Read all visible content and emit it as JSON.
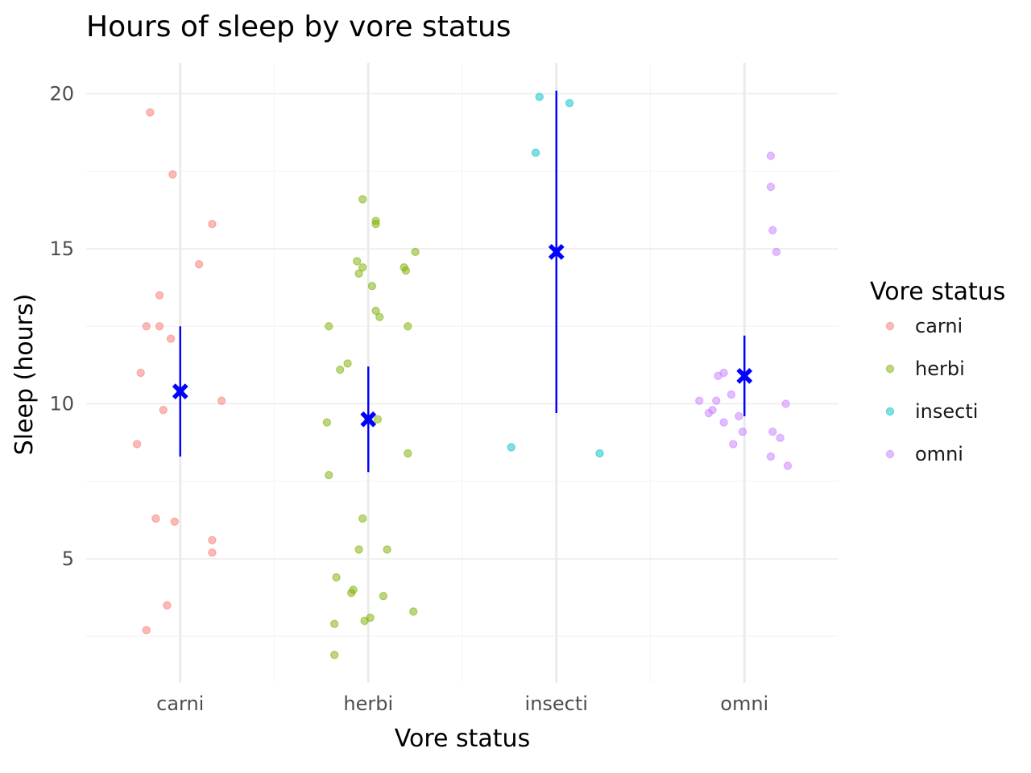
{
  "chart_data": {
    "type": "scatter",
    "title": "Hours of sleep by vore status",
    "xlabel": "Vore status",
    "ylabel": "Sleep (hours)",
    "categories": [
      "carni",
      "herbi",
      "insecti",
      "omni"
    ],
    "ylim": [
      1.0,
      21.0
    ],
    "yticks": [
      5,
      10,
      15,
      20
    ],
    "grid": true,
    "legend": {
      "title": "Vore status",
      "placement": "right",
      "entries": [
        "carni",
        "herbi",
        "insecti",
        "omni"
      ]
    },
    "colors": {
      "carni": "#f8766d",
      "herbi": "#7cae00",
      "insecti": "#00bfc4",
      "omni": "#c77cff",
      "summary": "#0000ff",
      "grid": "#ebebeb"
    },
    "series": [
      {
        "name": "carni",
        "points": [
          {
            "x": -0.16,
            "y": 19.4
          },
          {
            "x": -0.04,
            "y": 17.4
          },
          {
            "x": 0.17,
            "y": 15.8
          },
          {
            "x": 0.1,
            "y": 14.5
          },
          {
            "x": -0.11,
            "y": 13.5
          },
          {
            "x": -0.18,
            "y": 12.5
          },
          {
            "x": -0.11,
            "y": 12.5
          },
          {
            "x": -0.05,
            "y": 12.1
          },
          {
            "x": -0.21,
            "y": 11.0
          },
          {
            "x": 0.0,
            "y": 10.4
          },
          {
            "x": 0.22,
            "y": 10.1
          },
          {
            "x": -0.09,
            "y": 9.8
          },
          {
            "x": -0.23,
            "y": 8.7
          },
          {
            "x": -0.13,
            "y": 6.3
          },
          {
            "x": -0.03,
            "y": 6.2
          },
          {
            "x": 0.17,
            "y": 5.6
          },
          {
            "x": 0.17,
            "y": 5.2
          },
          {
            "x": -0.07,
            "y": 3.5
          },
          {
            "x": -0.18,
            "y": 2.7
          }
        ]
      },
      {
        "name": "herbi",
        "points": [
          {
            "x": -0.03,
            "y": 16.6
          },
          {
            "x": 0.04,
            "y": 15.9
          },
          {
            "x": 0.04,
            "y": 15.8
          },
          {
            "x": 0.25,
            "y": 14.9
          },
          {
            "x": -0.06,
            "y": 14.6
          },
          {
            "x": -0.03,
            "y": 14.4
          },
          {
            "x": 0.19,
            "y": 14.4
          },
          {
            "x": 0.2,
            "y": 14.3
          },
          {
            "x": -0.05,
            "y": 14.2
          },
          {
            "x": 0.02,
            "y": 13.8
          },
          {
            "x": 0.04,
            "y": 13.0
          },
          {
            "x": 0.06,
            "y": 12.8
          },
          {
            "x": -0.21,
            "y": 12.5
          },
          {
            "x": 0.21,
            "y": 12.5
          },
          {
            "x": -0.11,
            "y": 11.3
          },
          {
            "x": -0.15,
            "y": 11.1
          },
          {
            "x": 0.0,
            "y": 9.5
          },
          {
            "x": 0.05,
            "y": 9.5
          },
          {
            "x": -0.22,
            "y": 9.4
          },
          {
            "x": 0.21,
            "y": 8.4
          },
          {
            "x": -0.21,
            "y": 7.7
          },
          {
            "x": -0.03,
            "y": 6.3
          },
          {
            "x": -0.05,
            "y": 5.3
          },
          {
            "x": 0.1,
            "y": 5.3
          },
          {
            "x": -0.17,
            "y": 4.4
          },
          {
            "x": -0.08,
            "y": 4.0
          },
          {
            "x": -0.09,
            "y": 3.9
          },
          {
            "x": 0.08,
            "y": 3.8
          },
          {
            "x": 0.24,
            "y": 3.3
          },
          {
            "x": 0.01,
            "y": 3.1
          },
          {
            "x": -0.02,
            "y": 3.0
          },
          {
            "x": -0.18,
            "y": 2.9
          },
          {
            "x": -0.18,
            "y": 1.9
          }
        ]
      },
      {
        "name": "insecti",
        "points": [
          {
            "x": -0.09,
            "y": 19.9
          },
          {
            "x": 0.07,
            "y": 19.7
          },
          {
            "x": -0.11,
            "y": 18.1
          },
          {
            "x": -0.24,
            "y": 8.6
          },
          {
            "x": 0.23,
            "y": 8.4
          }
        ]
      },
      {
        "name": "omni",
        "points": [
          {
            "x": 0.14,
            "y": 18.0
          },
          {
            "x": 0.14,
            "y": 17.0
          },
          {
            "x": 0.15,
            "y": 15.6
          },
          {
            "x": 0.17,
            "y": 14.9
          },
          {
            "x": -0.11,
            "y": 11.0
          },
          {
            "x": -0.14,
            "y": 10.9
          },
          {
            "x": -0.07,
            "y": 10.3
          },
          {
            "x": -0.24,
            "y": 10.1
          },
          {
            "x": -0.15,
            "y": 10.1
          },
          {
            "x": 0.22,
            "y": 10.0
          },
          {
            "x": -0.17,
            "y": 9.8
          },
          {
            "x": -0.19,
            "y": 9.7
          },
          {
            "x": -0.03,
            "y": 9.6
          },
          {
            "x": -0.11,
            "y": 9.4
          },
          {
            "x": 0.15,
            "y": 9.1
          },
          {
            "x": -0.01,
            "y": 9.1
          },
          {
            "x": 0.19,
            "y": 8.9
          },
          {
            "x": -0.06,
            "y": 8.7
          },
          {
            "x": 0.14,
            "y": 8.3
          },
          {
            "x": 0.23,
            "y": 8.0
          }
        ]
      }
    ],
    "summary": [
      {
        "category": "carni",
        "mean": 10.4,
        "low": 8.3,
        "high": 12.5
      },
      {
        "category": "herbi",
        "mean": 9.5,
        "low": 7.8,
        "high": 11.2
      },
      {
        "category": "insecti",
        "mean": 14.9,
        "low": 9.7,
        "high": 20.1
      },
      {
        "category": "omni",
        "mean": 10.9,
        "low": 9.6,
        "high": 12.2
      }
    ]
  }
}
